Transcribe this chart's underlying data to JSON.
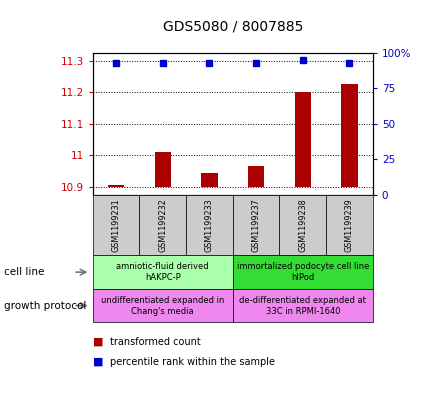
{
  "title": "GDS5080 / 8007885",
  "samples": [
    "GSM1199231",
    "GSM1199232",
    "GSM1199233",
    "GSM1199237",
    "GSM1199238",
    "GSM1199239"
  ],
  "bar_values": [
    10.905,
    11.01,
    10.945,
    10.965,
    11.2,
    11.225
  ],
  "bar_bottom": 10.9,
  "percentile_values": [
    93,
    93,
    93,
    93,
    95,
    93
  ],
  "ylim_left": [
    10.875,
    11.325
  ],
  "ylim_right": [
    0,
    100
  ],
  "yticks_left": [
    10.9,
    11.0,
    11.1,
    11.2,
    11.3
  ],
  "yticks_right": [
    0,
    25,
    50,
    75,
    100
  ],
  "ytick_labels_left": [
    "10.9",
    "11",
    "11.1",
    "11.2",
    "11.3"
  ],
  "ytick_labels_right": [
    "0",
    "25",
    "50",
    "75",
    "100%"
  ],
  "bar_color": "#aa0000",
  "dot_color": "#0000cc",
  "cell_line_groups": [
    {
      "label": "amniotic-fluid derived\nhAKPC-P",
      "start": 0,
      "end": 3,
      "color": "#aaffaa"
    },
    {
      "label": "immortalized podocyte cell line\nhIPod",
      "start": 3,
      "end": 6,
      "color": "#33dd33"
    }
  ],
  "growth_protocol_groups": [
    {
      "label": "undifferentiated expanded in\nChang's media",
      "start": 0,
      "end": 3,
      "color": "#ee88ee"
    },
    {
      "label": "de-differentiated expanded at\n33C in RPMI-1640",
      "start": 3,
      "end": 6,
      "color": "#ee88ee"
    }
  ],
  "cell_line_label": "cell line",
  "growth_protocol_label": "growth protocol",
  "legend_bar_label": "transformed count",
  "legend_dot_label": "percentile rank within the sample",
  "left_axis_color": "#cc0000",
  "right_axis_color": "#0000cc",
  "grid_color": "#000000",
  "sample_box_color": "#cccccc",
  "bg_color": "#ffffff"
}
